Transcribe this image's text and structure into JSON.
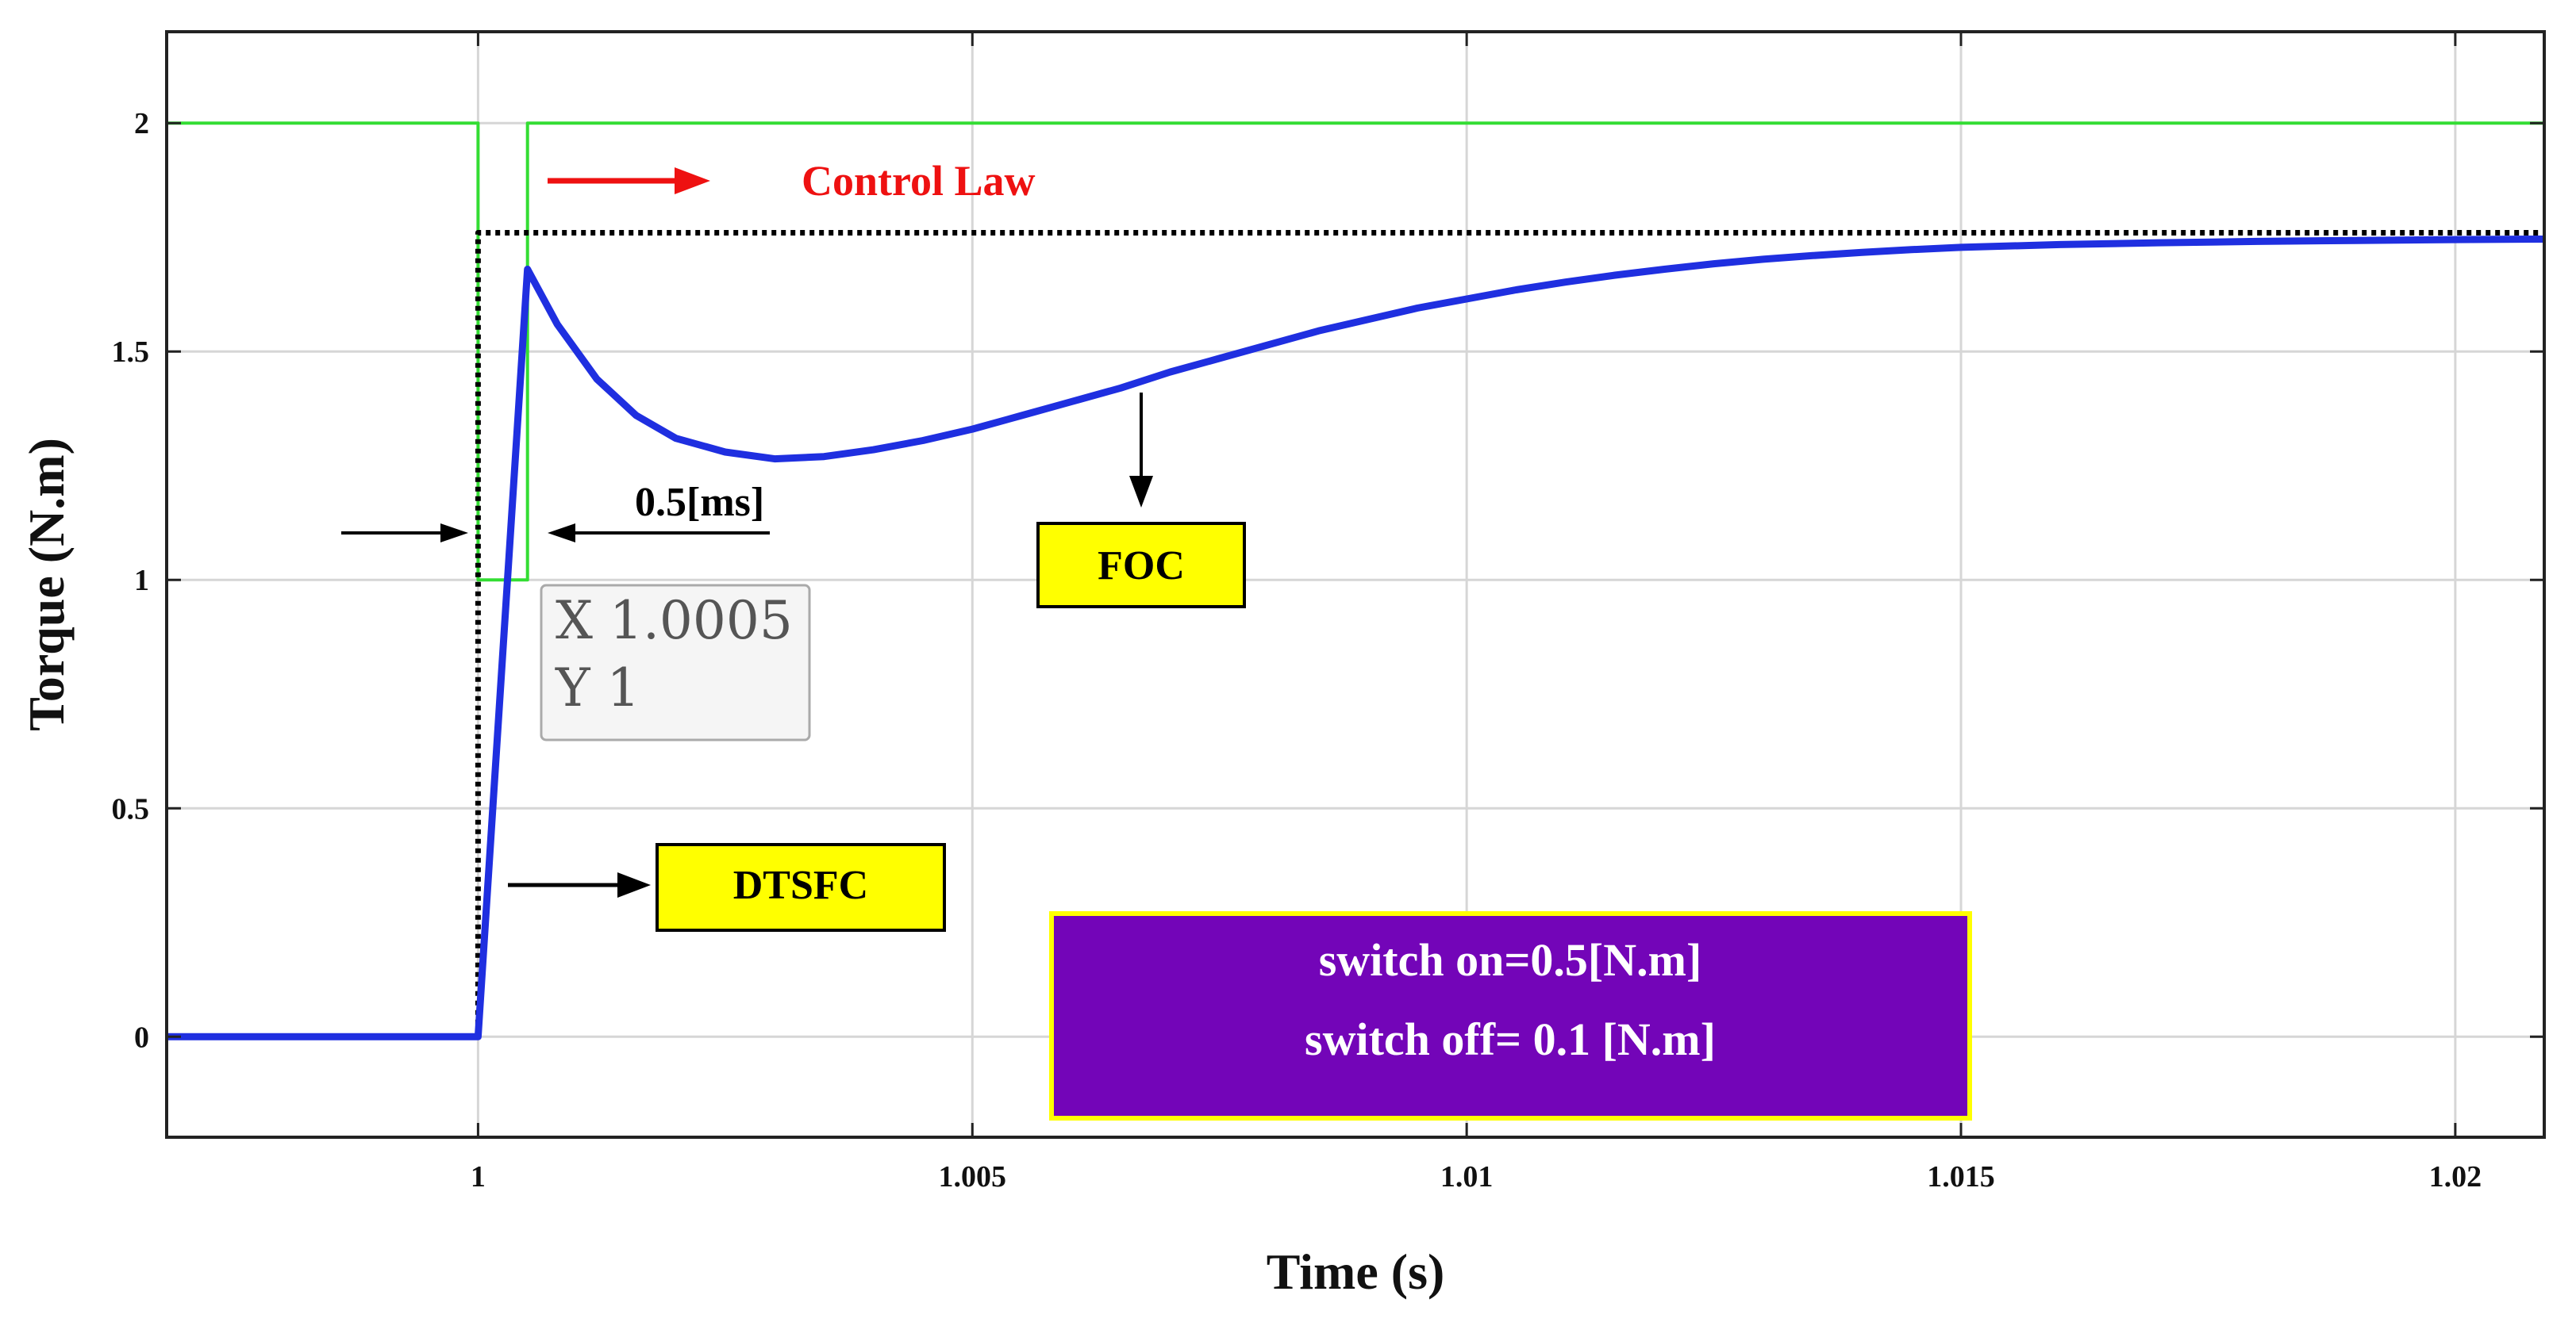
{
  "chart_data": {
    "type": "line",
    "xlabel": "Time (s)",
    "ylabel": "Torque (N.m)",
    "xlim": [
      0.99685,
      1.0209
    ],
    "ylim": [
      -0.22,
      2.2
    ],
    "xticks": [
      1,
      1.005,
      1.01,
      1.015,
      1.02
    ],
    "xtick_labels": [
      "1",
      "1.005",
      "1.01",
      "1.015",
      "1.02"
    ],
    "yticks": [
      0,
      0.5,
      1,
      1.5,
      2
    ],
    "ytick_labels": [
      "0",
      "0.5",
      "1",
      "1.5",
      "2"
    ],
    "grid": true,
    "series": [
      {
        "color": "#33dd33",
        "style": "solid",
        "x": [
          0.99685,
          1.0,
          1.0,
          1.0005,
          1.0005,
          1.0209
        ],
        "y": [
          2,
          2,
          1,
          1,
          2,
          2
        ]
      },
      {
        "color": "#000000",
        "style": "dotted",
        "x": [
          0.99685,
          1.0,
          1.0,
          1.0209
        ],
        "y": [
          0,
          0,
          1.76,
          1.76
        ]
      },
      {
        "color": "#1f2fe0",
        "style": "solid",
        "x": [
          0.99685,
          1.0,
          1.0005,
          1.0008,
          1.0012,
          1.0016,
          1.002,
          1.0025,
          1.003,
          1.0035,
          1.004,
          1.0045,
          1.005,
          1.0055,
          1.006,
          1.0065,
          1.007,
          1.0075,
          1.008,
          1.0085,
          1.009,
          1.0095,
          1.01,
          1.0105,
          1.011,
          1.0115,
          1.012,
          1.0125,
          1.013,
          1.0135,
          1.014,
          1.0145,
          1.015,
          1.016,
          1.017,
          1.018,
          1.019,
          1.02,
          1.0209
        ],
        "y": [
          0,
          0,
          1.68,
          1.56,
          1.44,
          1.36,
          1.31,
          1.28,
          1.265,
          1.27,
          1.285,
          1.305,
          1.33,
          1.36,
          1.39,
          1.42,
          1.455,
          1.485,
          1.515,
          1.545,
          1.57,
          1.595,
          1.615,
          1.635,
          1.652,
          1.667,
          1.68,
          1.692,
          1.702,
          1.71,
          1.717,
          1.723,
          1.728,
          1.734,
          1.738,
          1.741,
          1.743,
          1.745,
          1.746
        ]
      }
    ],
    "annotations": {
      "control_law": "Control Law",
      "interval": "0.5[ms]",
      "foc": "FOC",
      "dtsfc": "DTSFC",
      "switch_on": "switch on=0.5[N.m]",
      "switch_off": "switch off= 0.1 [N.m]",
      "datatip_x": "X 1.0005",
      "datatip_y": "Y 1"
    },
    "colors": {
      "control_law": "#ee1111",
      "label_box": "#ffff00",
      "switch_box": "#7305b8",
      "switch_box_border": "#ffff00"
    }
  }
}
